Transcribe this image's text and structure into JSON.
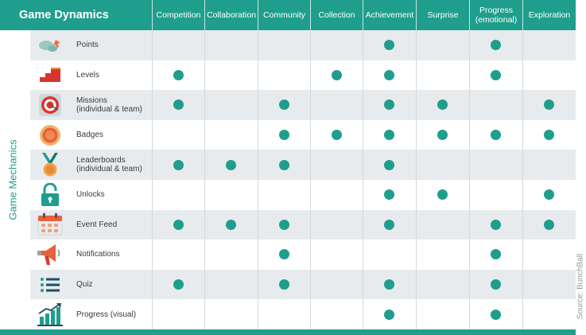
{
  "title": "Game Dynamics",
  "side_label": "Game Mechanics",
  "source": "Source: BunchBall",
  "accent": "#1f9e8d",
  "dynamics": [
    {
      "line1": "Competition",
      "line2": ""
    },
    {
      "line1": "Collaboration",
      "line2": ""
    },
    {
      "line1": "Community",
      "line2": ""
    },
    {
      "line1": "Collection",
      "line2": ""
    },
    {
      "line1": "Achievement",
      "line2": ""
    },
    {
      "line1": "Surprise",
      "line2": ""
    },
    {
      "line1": "Progress",
      "line2": "(emotional)"
    },
    {
      "line1": "Exploration",
      "line2": ""
    }
  ],
  "mechanics": [
    {
      "icon": "points-icon",
      "line1": "Points",
      "line2": "",
      "marks": [
        false,
        false,
        false,
        false,
        true,
        false,
        true,
        false
      ]
    },
    {
      "icon": "levels-icon",
      "line1": "Levels",
      "line2": "",
      "marks": [
        true,
        false,
        false,
        true,
        true,
        false,
        true,
        false
      ]
    },
    {
      "icon": "missions-icon",
      "line1": "Missions",
      "line2": "(individual & team)",
      "marks": [
        true,
        false,
        true,
        false,
        true,
        true,
        false,
        true
      ]
    },
    {
      "icon": "badges-icon",
      "line1": "Badges",
      "line2": "",
      "marks": [
        false,
        false,
        true,
        true,
        true,
        true,
        true,
        true
      ]
    },
    {
      "icon": "leaderboards-icon",
      "line1": "Leaderboards",
      "line2": "(individual & team)",
      "marks": [
        true,
        true,
        true,
        false,
        true,
        false,
        false,
        false
      ]
    },
    {
      "icon": "unlocks-icon",
      "line1": "Unlocks",
      "line2": "",
      "marks": [
        false,
        false,
        false,
        false,
        true,
        true,
        false,
        true
      ]
    },
    {
      "icon": "event-feed-icon",
      "line1": "Event Feed",
      "line2": "",
      "marks": [
        true,
        true,
        true,
        false,
        true,
        false,
        true,
        true
      ]
    },
    {
      "icon": "notifications-icon",
      "line1": "Notifications",
      "line2": "",
      "marks": [
        false,
        false,
        true,
        false,
        false,
        false,
        true,
        false
      ]
    },
    {
      "icon": "quiz-icon",
      "line1": "Quiz",
      "line2": "",
      "marks": [
        true,
        false,
        true,
        false,
        true,
        false,
        true,
        false
      ]
    },
    {
      "icon": "progress-visual-icon",
      "line1": "Progress (visual)",
      "line2": "",
      "marks": [
        false,
        false,
        false,
        false,
        true,
        false,
        true,
        false
      ]
    }
  ]
}
